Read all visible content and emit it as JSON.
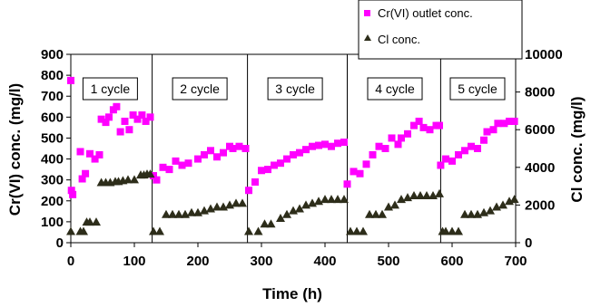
{
  "chart_data": {
    "type": "scatter",
    "xlabel": "Time (h)",
    "ylabel": "Cr(VI) conc. (mg/l)",
    "y2label": "Cl conc. (mg/l)",
    "xlim": [
      0,
      700
    ],
    "ylim": [
      0,
      900
    ],
    "y2lim": [
      0,
      10000
    ],
    "x_ticks": [
      0,
      100,
      200,
      300,
      400,
      500,
      600,
      700
    ],
    "y_ticks": [
      0,
      100,
      200,
      300,
      400,
      500,
      600,
      700,
      800,
      900
    ],
    "y2_ticks": [
      0,
      2000,
      4000,
      6000,
      8000,
      10000
    ],
    "cycle_boundaries": [
      128,
      278,
      435,
      582
    ],
    "cycle_labels": [
      {
        "text": "1 cycle",
        "x": 62
      },
      {
        "text": "2 cycle",
        "x": 203
      },
      {
        "text": "3 cycle",
        "x": 353
      },
      {
        "text": "4 cycle",
        "x": 510
      },
      {
        "text": "5 cycle",
        "x": 640
      }
    ],
    "series": [
      {
        "name": "Cr(VI) outlet conc.",
        "axis": "left",
        "color": "#ff00ff",
        "marker": "square",
        "points": [
          [
            0,
            775
          ],
          [
            1,
            250
          ],
          [
            3,
            230
          ],
          [
            15,
            435
          ],
          [
            18,
            305
          ],
          [
            23,
            330
          ],
          [
            30,
            425
          ],
          [
            38,
            400
          ],
          [
            45,
            420
          ],
          [
            48,
            590
          ],
          [
            55,
            575
          ],
          [
            60,
            600
          ],
          [
            67,
            635
          ],
          [
            72,
            650
          ],
          [
            78,
            530
          ],
          [
            85,
            580
          ],
          [
            92,
            540
          ],
          [
            98,
            610
          ],
          [
            105,
            590
          ],
          [
            112,
            610
          ],
          [
            118,
            580
          ],
          [
            125,
            600
          ],
          [
            130,
            320
          ],
          [
            135,
            300
          ],
          [
            145,
            360
          ],
          [
            155,
            350
          ],
          [
            165,
            390
          ],
          [
            175,
            370
          ],
          [
            185,
            380
          ],
          [
            200,
            400
          ],
          [
            210,
            420
          ],
          [
            220,
            440
          ],
          [
            230,
            410
          ],
          [
            240,
            430
          ],
          [
            250,
            460
          ],
          [
            255,
            450
          ],
          [
            265,
            460
          ],
          [
            275,
            450
          ],
          [
            280,
            250
          ],
          [
            290,
            290
          ],
          [
            300,
            345
          ],
          [
            310,
            350
          ],
          [
            320,
            370
          ],
          [
            330,
            380
          ],
          [
            340,
            400
          ],
          [
            350,
            420
          ],
          [
            360,
            430
          ],
          [
            370,
            445
          ],
          [
            380,
            460
          ],
          [
            390,
            465
          ],
          [
            400,
            470
          ],
          [
            410,
            460
          ],
          [
            420,
            475
          ],
          [
            430,
            480
          ],
          [
            435,
            280
          ],
          [
            445,
            340
          ],
          [
            455,
            330
          ],
          [
            465,
            375
          ],
          [
            475,
            420
          ],
          [
            485,
            460
          ],
          [
            495,
            450
          ],
          [
            505,
            500
          ],
          [
            515,
            470
          ],
          [
            520,
            500
          ],
          [
            530,
            520
          ],
          [
            540,
            560
          ],
          [
            548,
            580
          ],
          [
            555,
            550
          ],
          [
            565,
            540
          ],
          [
            575,
            560
          ],
          [
            580,
            560
          ],
          [
            582,
            370
          ],
          [
            590,
            400
          ],
          [
            600,
            390
          ],
          [
            610,
            420
          ],
          [
            620,
            440
          ],
          [
            630,
            460
          ],
          [
            640,
            450
          ],
          [
            650,
            490
          ],
          [
            655,
            530
          ],
          [
            665,
            540
          ],
          [
            672,
            570
          ],
          [
            682,
            570
          ],
          [
            690,
            580
          ],
          [
            698,
            580
          ]
        ]
      },
      {
        "name": "Cl conc.",
        "axis": "right",
        "color": "#2d2d1a",
        "marker": "triangle",
        "points": [
          [
            0,
            600
          ],
          [
            15,
            600
          ],
          [
            20,
            600
          ],
          [
            25,
            1100
          ],
          [
            30,
            1100
          ],
          [
            40,
            1100
          ],
          [
            48,
            3200
          ],
          [
            55,
            3200
          ],
          [
            62,
            3200
          ],
          [
            70,
            3250
          ],
          [
            75,
            3250
          ],
          [
            82,
            3300
          ],
          [
            90,
            3350
          ],
          [
            100,
            3350
          ],
          [
            110,
            3600
          ],
          [
            115,
            3600
          ],
          [
            120,
            3650
          ],
          [
            125,
            3650
          ],
          [
            130,
            600
          ],
          [
            140,
            600
          ],
          [
            150,
            1500
          ],
          [
            160,
            1500
          ],
          [
            170,
            1500
          ],
          [
            180,
            1500
          ],
          [
            190,
            1600
          ],
          [
            200,
            1600
          ],
          [
            210,
            1700
          ],
          [
            220,
            1800
          ],
          [
            230,
            1900
          ],
          [
            240,
            1900
          ],
          [
            250,
            2000
          ],
          [
            260,
            2100
          ],
          [
            270,
            2100
          ],
          [
            280,
            600
          ],
          [
            295,
            600
          ],
          [
            305,
            1000
          ],
          [
            315,
            1000
          ],
          [
            330,
            1300
          ],
          [
            340,
            1500
          ],
          [
            350,
            1700
          ],
          [
            360,
            1800
          ],
          [
            370,
            2000
          ],
          [
            380,
            2100
          ],
          [
            390,
            2200
          ],
          [
            400,
            2300
          ],
          [
            410,
            2300
          ],
          [
            420,
            2300
          ],
          [
            430,
            2300
          ],
          [
            440,
            600
          ],
          [
            450,
            600
          ],
          [
            460,
            600
          ],
          [
            470,
            1500
          ],
          [
            480,
            1500
          ],
          [
            490,
            1500
          ],
          [
            500,
            1900
          ],
          [
            510,
            2000
          ],
          [
            520,
            2300
          ],
          [
            530,
            2400
          ],
          [
            540,
            2500
          ],
          [
            550,
            2500
          ],
          [
            560,
            2500
          ],
          [
            570,
            2500
          ],
          [
            580,
            2600
          ],
          [
            585,
            600
          ],
          [
            590,
            600
          ],
          [
            600,
            600
          ],
          [
            610,
            600
          ],
          [
            620,
            1500
          ],
          [
            630,
            1500
          ],
          [
            640,
            1500
          ],
          [
            650,
            1600
          ],
          [
            660,
            1700
          ],
          [
            670,
            1900
          ],
          [
            680,
            2000
          ],
          [
            690,
            2200
          ],
          [
            698,
            2300
          ]
        ]
      }
    ],
    "legend_position": "top-right"
  }
}
